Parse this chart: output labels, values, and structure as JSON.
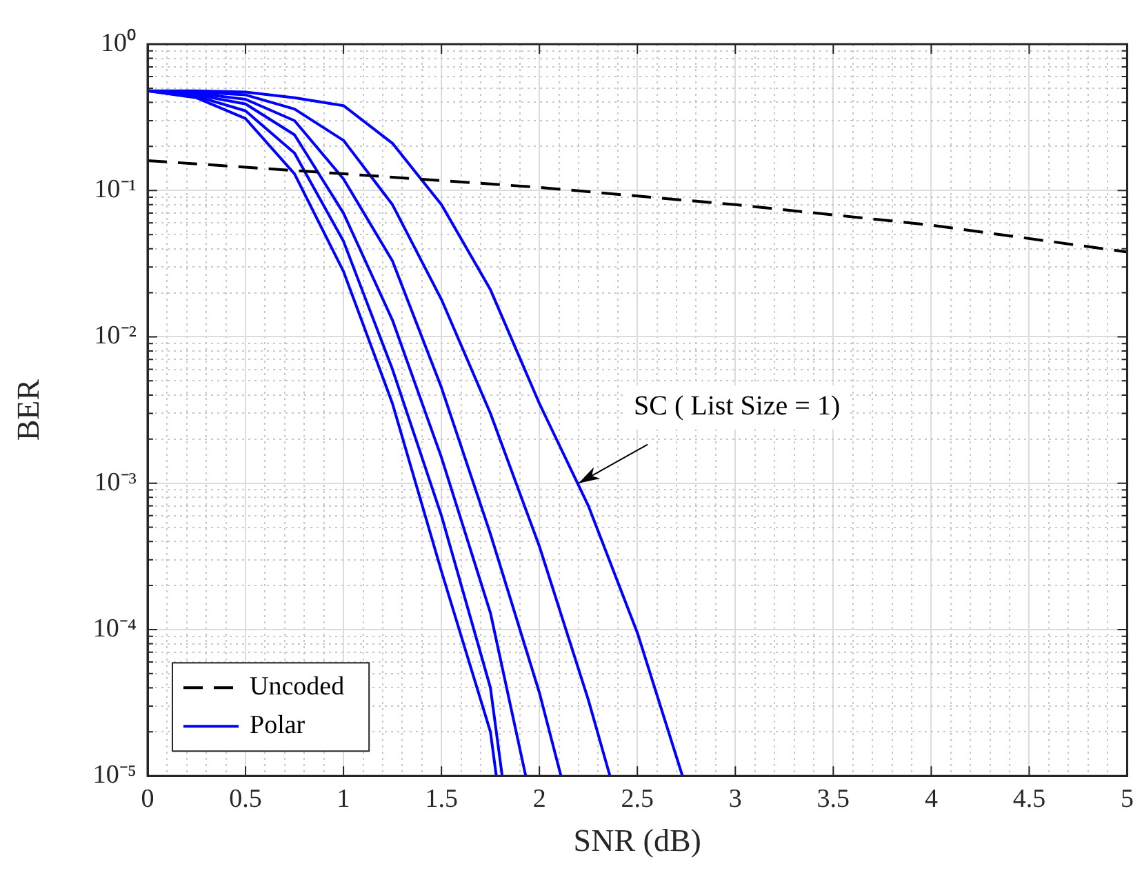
{
  "chart_data": {
    "type": "line",
    "xlabel": "SNR (dB)",
    "ylabel": "BER",
    "log": "y",
    "grid": true,
    "legend": "bottom left",
    "marker": "none",
    "xlim": [
      0,
      5
    ],
    "ylim": [
      1e-05,
      1
    ],
    "xticks": [
      0,
      {
        "value": 0.1,
        "label": null
      },
      {
        "value": 0.2,
        "label": null
      },
      {
        "value": 0.3,
        "label": null
      },
      {
        "value": 0.4,
        "label": null
      },
      0.5,
      {
        "value": 0.6,
        "label": null
      },
      {
        "value": 0.7,
        "label": null
      },
      {
        "value": 0.8,
        "label": null
      },
      {
        "value": 0.9,
        "label": null
      },
      1,
      {
        "value": 1.1,
        "label": null
      },
      {
        "value": 1.2,
        "label": null
      },
      {
        "value": 1.3,
        "label": null
      },
      {
        "value": 1.4,
        "label": null
      },
      1.5,
      {
        "value": 1.6,
        "label": null
      },
      {
        "value": 1.7,
        "label": null
      },
      {
        "value": 1.8,
        "label": null
      },
      {
        "value": 1.9,
        "label": null
      },
      2,
      {
        "value": 2.1,
        "label": null
      },
      {
        "value": 2.2,
        "label": null
      },
      {
        "value": 2.3,
        "label": null
      },
      {
        "value": 2.4,
        "label": null
      },
      2.5,
      {
        "value": 2.6,
        "label": null
      },
      {
        "value": 2.7,
        "label": null
      },
      {
        "value": 2.8,
        "label": null
      },
      {
        "value": 2.9,
        "label": null
      },
      3,
      {
        "value": 3.1,
        "label": null
      },
      {
        "value": 3.2,
        "label": null
      },
      {
        "value": 3.3,
        "label": null
      },
      {
        "value": 3.4,
        "label": null
      },
      3.5,
      {
        "value": 3.6,
        "label": null
      },
      {
        "value": 3.7,
        "label": null
      },
      {
        "value": 3.8,
        "label": null
      },
      {
        "value": 3.9,
        "label": null
      },
      4,
      {
        "value": 4.1,
        "label": null
      },
      {
        "value": 4.2,
        "label": null
      },
      {
        "value": 4.3,
        "label": null
      },
      {
        "value": 4.4,
        "label": null
      },
      4.5,
      {
        "value": 4.6,
        "label": null
      },
      {
        "value": 4.7,
        "label": null
      },
      {
        "value": 4.8,
        "label": null
      },
      {
        "value": 4.9,
        "label": null
      },
      5
    ],
    "yticks": [
      {
        "value": 1e-05,
        "label": "10⁻⁵"
      },
      {
        "value": 2e-05,
        "label": null
      },
      {
        "value": 3e-05,
        "label": null
      },
      {
        "value": 4e-05,
        "label": null
      },
      {
        "value": 5e-05,
        "label": null
      },
      {
        "value": 6e-05,
        "label": null
      },
      {
        "value": 7e-05,
        "label": null
      },
      {
        "value": 8e-05,
        "label": null
      },
      {
        "value": 9e-05,
        "label": null
      },
      {
        "value": 0.0001,
        "label": "10⁻⁴"
      },
      {
        "value": 0.0002,
        "label": null
      },
      {
        "value": 0.0003,
        "label": null
      },
      {
        "value": 0.0004,
        "label": null
      },
      {
        "value": 0.0005,
        "label": null
      },
      {
        "value": 0.0006,
        "label": null
      },
      {
        "value": 0.0007,
        "label": null
      },
      {
        "value": 0.0008,
        "label": null
      },
      {
        "value": 0.0009,
        "label": null
      },
      {
        "value": 0.001,
        "label": "10⁻³"
      },
      {
        "value": 0.002,
        "label": null
      },
      {
        "value": 0.003,
        "label": null
      },
      {
        "value": 0.004,
        "label": null
      },
      {
        "value": 0.005,
        "label": null
      },
      {
        "value": 0.006,
        "label": null
      },
      {
        "value": 0.007,
        "label": null
      },
      {
        "value": 0.008,
        "label": null
      },
      {
        "value": 0.009,
        "label": null
      },
      {
        "value": 0.01,
        "label": "10⁻²"
      },
      {
        "value": 0.02,
        "label": null
      },
      {
        "value": 0.03,
        "label": null
      },
      {
        "value": 0.04,
        "label": null
      },
      {
        "value": 0.05,
        "label": null
      },
      {
        "value": 0.06,
        "label": null
      },
      {
        "value": 0.07,
        "label": null
      },
      {
        "value": 0.08,
        "label": null
      },
      {
        "value": 0.09,
        "label": null
      },
      {
        "value": 0.1,
        "label": "10⁻¹"
      },
      {
        "value": 0.2,
        "label": null
      },
      {
        "value": 0.3,
        "label": null
      },
      {
        "value": 0.4,
        "label": null
      },
      {
        "value": 0.5,
        "label": null
      },
      {
        "value": 0.6,
        "label": null
      },
      {
        "value": 0.7,
        "label": null
      },
      {
        "value": 0.8,
        "label": null
      },
      {
        "value": 0.9,
        "label": null
      },
      {
        "value": 1,
        "label": "10⁰"
      }
    ],
    "annotations": [
      {
        "text": "SC ( List Size = 1)",
        "x": 2.2,
        "y": 0.001
      }
    ],
    "series": [
      {
        "name": "Uncoded",
        "color": "#000000",
        "line_style": "dashed",
        "x": [
          0,
          1,
          2,
          3,
          4,
          5
        ],
        "values": [
          0.16,
          0.13,
          0.105,
          0.08,
          0.058,
          0.038
        ]
      },
      {
        "name": "Polar",
        "color": "#0000ff",
        "line_style": "solid",
        "x": [
          0,
          0.25,
          0.5,
          0.75,
          1,
          1.25,
          1.5,
          1.75,
          2,
          2.25,
          2.5,
          2.73
        ],
        "values": [
          0.48,
          0.48,
          0.47,
          0.43,
          0.38,
          0.21,
          0.08,
          0.021,
          0.0035,
          0.0007,
          9.5e-05,
          1e-05
        ]
      },
      {
        "color": "#0000ff",
        "line_style": "solid",
        "x": [
          0,
          0.25,
          0.5,
          0.75,
          1,
          1.25,
          1.5,
          1.75,
          2,
          2.25,
          2.36
        ],
        "values": [
          0.48,
          0.47,
          0.45,
          0.36,
          0.22,
          0.08,
          0.018,
          0.003,
          0.00037,
          3.3e-05,
          1e-05
        ]
      },
      {
        "color": "#0000ff",
        "line_style": "solid",
        "x": [
          0,
          0.25,
          0.5,
          0.75,
          1,
          1.25,
          1.5,
          1.75,
          2,
          2.11
        ],
        "values": [
          0.48,
          0.46,
          0.42,
          0.3,
          0.12,
          0.033,
          0.0045,
          0.00045,
          3.7e-05,
          1e-05
        ]
      },
      {
        "color": "#0000ff",
        "line_style": "solid",
        "x": [
          0,
          0.25,
          0.5,
          0.75,
          1,
          1.25,
          1.5,
          1.75,
          1.93
        ],
        "values": [
          0.48,
          0.45,
          0.39,
          0.24,
          0.07,
          0.013,
          0.0015,
          0.00013,
          1e-05
        ]
      },
      {
        "color": "#0000ff",
        "line_style": "solid",
        "x": [
          0,
          0.25,
          0.5,
          0.75,
          1,
          1.25,
          1.5,
          1.75,
          1.81
        ],
        "values": [
          0.48,
          0.44,
          0.35,
          0.18,
          0.045,
          0.006,
          0.0006,
          4e-05,
          1e-05
        ]
      },
      {
        "color": "#0000ff",
        "line_style": "solid",
        "x": [
          0,
          0.25,
          0.5,
          0.75,
          1,
          1.25,
          1.5,
          1.75,
          1.78
        ],
        "values": [
          0.48,
          0.43,
          0.31,
          0.13,
          0.028,
          0.0035,
          0.00025,
          2e-05,
          1e-05
        ]
      }
    ]
  }
}
